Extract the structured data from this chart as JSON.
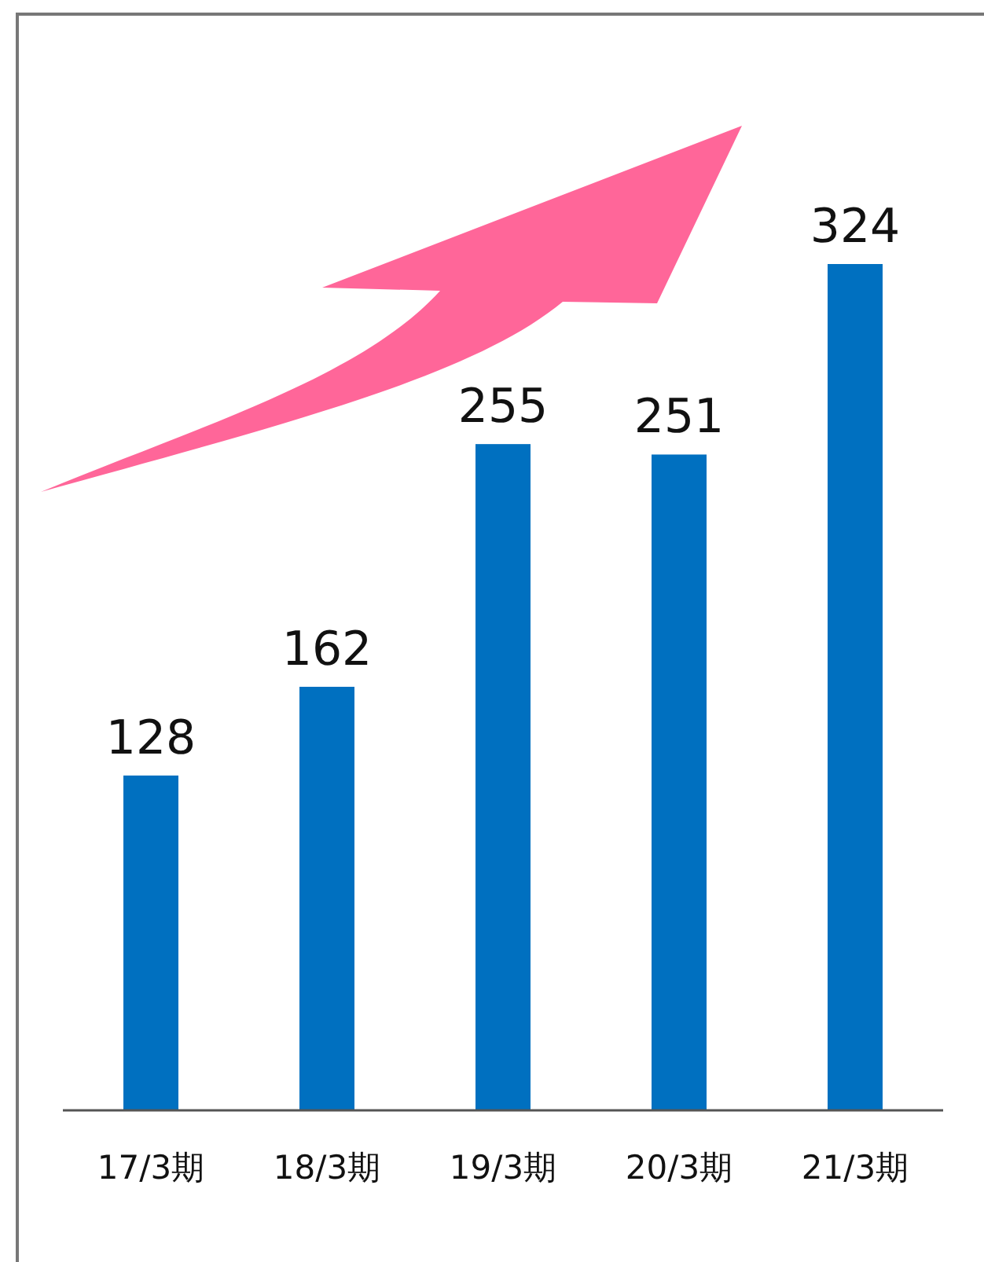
{
  "chart_data": {
    "type": "bar",
    "categories": [
      "17/3期",
      "18/3期",
      "19/3期",
      "20/3期",
      "21/3期"
    ],
    "values": [
      128,
      162,
      255,
      251,
      324
    ],
    "color": "#0070c0",
    "data_labels": true
  }
}
